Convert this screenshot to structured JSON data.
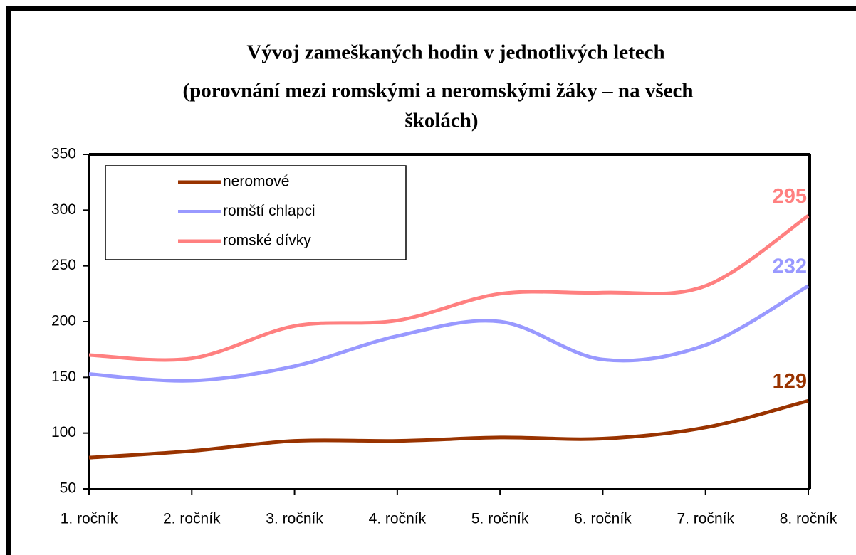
{
  "chart_data": {
    "type": "line",
    "title": [
      "Vývoj zameškaných hodin v jednotlivých letech",
      "(porovnání mezi romskými a neromskými žáky – na všech",
      "školách)"
    ],
    "categories": [
      "1. ročník",
      "2. ročník",
      "3. ročník",
      "4. ročník",
      "5. ročník",
      "6. ročník",
      "7. ročník",
      "8. ročník"
    ],
    "series": [
      {
        "name": "neromové",
        "color": "#993300",
        "values": [
          78,
          84,
          93,
          93,
          96,
          95,
          105,
          129
        ]
      },
      {
        "name": "romští chlapci",
        "color": "#9999ff",
        "values": [
          153,
          147,
          160,
          187,
          200,
          166,
          179,
          232
        ]
      },
      {
        "name": "romské dívky",
        "color": "#ff8080",
        "values": [
          170,
          167,
          196,
          201,
          225,
          226,
          232,
          295
        ]
      }
    ],
    "ylim": [
      50,
      350
    ],
    "yticks": [
      50,
      100,
      150,
      200,
      250,
      300,
      350
    ],
    "grid": false,
    "legend": "top-left"
  }
}
